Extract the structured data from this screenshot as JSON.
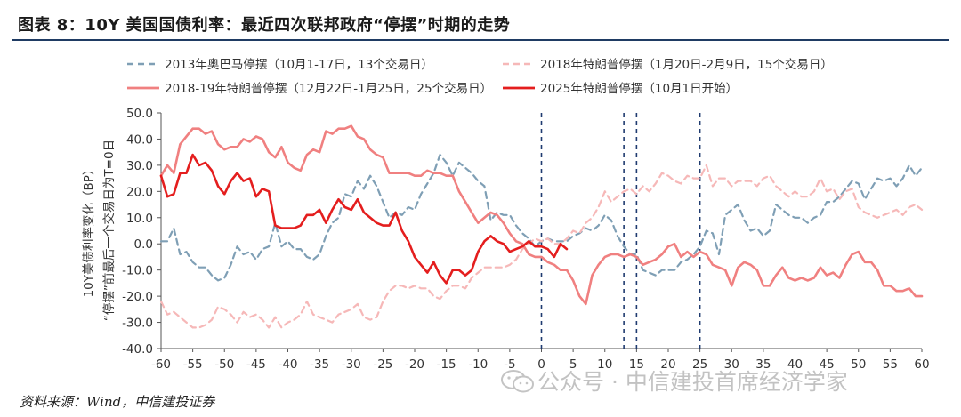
{
  "header": {
    "title": "图表 8：10Y 美国国债利率：最近四次联邦政府“停摆”时期的走势"
  },
  "footer": {
    "source": "资料来源：Wind，中信建投证券"
  },
  "watermark": {
    "text": "公众号 · 中信建投首席经济学家",
    "icon": "wechat-icon"
  },
  "chart_data": {
    "type": "line",
    "title": "10Y 美国国债利率：最近四次联邦政府“停摆”时期的走势",
    "ylabel": "10Y美债利率变化（BP）“停摆”前最后一个交易日为T=0日",
    "xlabel": "",
    "xlim": [
      -60,
      60
    ],
    "ylim": [
      -40,
      50
    ],
    "xticks": [
      -60,
      -55,
      -50,
      -45,
      -40,
      -35,
      -30,
      -25,
      -20,
      -15,
      -10,
      -5,
      0,
      5,
      10,
      15,
      20,
      25,
      30,
      35,
      40,
      45,
      50,
      55,
      60
    ],
    "yticks": [
      "-40.0",
      "-30.0",
      "-20.0",
      "-10.0",
      "0.0",
      "10.0",
      "20.0",
      "30.0",
      "40.0",
      "50.0"
    ],
    "vlines": [
      0,
      13,
      15,
      25
    ],
    "vline_color": "#1f3b70",
    "legend": [
      {
        "label": "2013年奥巴马停摆（10月1-17日，13个交易日）",
        "color": "#7f9fb5",
        "style": "dashed"
      },
      {
        "label": "2018年特朗普停摆（1月20日-2月9日，15个交易日）",
        "color": "#f6b8b8",
        "style": "dashed"
      },
      {
        "label": "2018-19年特朗普停摆（12月22日-1月25日，25个交易日）",
        "color": "#f08080",
        "style": "solid"
      },
      {
        "label": "2025年特朗普停摆（10月1日开始）",
        "color": "#e41e1e",
        "style": "solid"
      }
    ],
    "series": [
      {
        "name": "2013年奥巴马停摆（10月1-17日，13个交易日）",
        "color": "#7f9fb5",
        "dash": "7,5",
        "width": 2.2,
        "x": [
          -60,
          -59,
          -58,
          -57,
          -56,
          -55,
          -54,
          -53,
          -52,
          -51,
          -50,
          -49,
          -48,
          -47,
          -46,
          -45,
          -44,
          -43,
          -42,
          -41,
          -40,
          -39,
          -38,
          -37,
          -36,
          -35,
          -34,
          -33,
          -32,
          -31,
          -30,
          -29,
          -28,
          -27,
          -26,
          -25,
          -24,
          -23,
          -22,
          -21,
          -20,
          -19,
          -18,
          -17,
          -16,
          -15,
          -14,
          -13,
          -12,
          -11,
          -10,
          -9,
          -8,
          -7,
          -6,
          -5,
          -4,
          -3,
          -2,
          -1,
          0,
          1,
          2,
          3,
          4,
          5,
          6,
          7,
          8,
          9,
          10,
          11,
          12,
          13,
          14,
          15,
          16,
          17,
          18,
          19,
          20,
          21,
          22,
          23,
          24,
          25,
          26,
          27,
          28,
          29,
          30,
          31,
          32,
          33,
          34,
          35,
          36,
          37,
          38,
          39,
          40,
          41,
          42,
          43,
          44,
          45,
          46,
          47,
          48,
          49,
          50,
          51,
          52,
          53,
          54,
          55,
          56,
          57,
          58,
          59,
          60
        ],
        "y": [
          1,
          1,
          6,
          -4,
          -3,
          -7,
          -9,
          -9,
          -12,
          -14,
          -13,
          -8,
          -1,
          -4,
          -3,
          -6,
          -2,
          -1,
          8,
          -1,
          1,
          -2,
          -2,
          -5,
          -6,
          -4,
          3,
          8,
          10,
          19,
          18,
          24,
          21,
          26,
          22,
          16,
          10,
          12,
          11,
          14,
          13,
          19,
          23,
          27,
          34,
          31,
          26,
          31,
          29,
          27,
          24,
          22,
          9,
          12,
          11,
          11,
          7,
          4,
          2,
          -1,
          1,
          2,
          1,
          1,
          1,
          3,
          4,
          6,
          5,
          7,
          11,
          9,
          3,
          -1,
          -4,
          -4,
          -10,
          -11,
          -12,
          -10,
          -10,
          -10,
          -7,
          -6,
          -4,
          -1,
          5,
          4,
          -4,
          11,
          13,
          15,
          9,
          5,
          6,
          3,
          5,
          15,
          13,
          11,
          10,
          10,
          8,
          10,
          11,
          16,
          16,
          18,
          21,
          24,
          23,
          17,
          21,
          25,
          24,
          25,
          22,
          25,
          30,
          26,
          29
        ]
      },
      {
        "name": "2018年特朗普停摆（1月20日-2月9日，15个交易日）",
        "color": "#f6b8b8",
        "dash": "7,5",
        "width": 2.2,
        "x": [
          -60,
          -59,
          -58,
          -57,
          -56,
          -55,
          -54,
          -53,
          -52,
          -51,
          -50,
          -49,
          -48,
          -47,
          -46,
          -45,
          -44,
          -43,
          -42,
          -41,
          -40,
          -39,
          -38,
          -37,
          -36,
          -35,
          -34,
          -33,
          -32,
          -31,
          -30,
          -29,
          -28,
          -27,
          -26,
          -25,
          -24,
          -23,
          -22,
          -21,
          -20,
          -19,
          -18,
          -17,
          -16,
          -15,
          -14,
          -13,
          -12,
          -11,
          -10,
          -9,
          -8,
          -7,
          -6,
          -5,
          -4,
          -3,
          -2,
          -1,
          0,
          1,
          2,
          3,
          4,
          5,
          6,
          7,
          8,
          9,
          10,
          11,
          12,
          13,
          14,
          15,
          16,
          17,
          18,
          19,
          20,
          21,
          22,
          23,
          24,
          25,
          26,
          27,
          28,
          29,
          30,
          31,
          32,
          33,
          34,
          35,
          36,
          37,
          38,
          39,
          40,
          41,
          42,
          43,
          44,
          45,
          46,
          47,
          48,
          49,
          50,
          51,
          52,
          53,
          54,
          55,
          56,
          57,
          58,
          59,
          60
        ],
        "y": [
          -22,
          -27,
          -26,
          -28,
          -30,
          -32,
          -32,
          -31,
          -29,
          -24,
          -25,
          -27,
          -30,
          -26,
          -28,
          -27,
          -29,
          -32,
          -28,
          -32,
          -30,
          -29,
          -27,
          -22,
          -27,
          -28,
          -29,
          -30,
          -27,
          -26,
          -25,
          -23,
          -28,
          -29,
          -28,
          -22,
          -18,
          -16,
          -16,
          -17,
          -16,
          -17,
          -17,
          -20,
          -21,
          -18,
          -16,
          -16,
          -17,
          -13,
          -11,
          -9,
          -9,
          -9,
          -9,
          -8,
          -6,
          -2,
          0,
          2,
          1,
          2,
          0,
          0,
          2,
          5,
          4,
          8,
          10,
          14,
          20,
          16,
          18,
          20,
          21,
          19,
          22,
          20,
          23,
          27,
          26,
          24,
          23,
          26,
          25,
          25,
          30,
          22,
          25,
          25,
          22,
          24,
          24,
          24,
          22,
          25,
          26,
          22,
          20,
          18,
          20,
          18,
          18,
          20,
          25,
          20,
          21,
          17,
          20,
          21,
          14,
          12,
          11,
          10,
          11,
          12,
          13,
          11,
          14,
          15,
          13
        ]
      },
      {
        "name": "2018-19年特朗普停摆（12月22日-1月25日，25个交易日）",
        "color": "#f08080",
        "dash": "",
        "width": 2.6,
        "x": [
          -60,
          -59,
          -58,
          -57,
          -56,
          -55,
          -54,
          -53,
          -52,
          -51,
          -50,
          -49,
          -48,
          -47,
          -46,
          -45,
          -44,
          -43,
          -42,
          -41,
          -40,
          -39,
          -38,
          -37,
          -36,
          -35,
          -34,
          -33,
          -32,
          -31,
          -30,
          -29,
          -28,
          -27,
          -26,
          -25,
          -24,
          -23,
          -22,
          -21,
          -20,
          -19,
          -18,
          -17,
          -16,
          -15,
          -14,
          -13,
          -12,
          -11,
          -10,
          -9,
          -8,
          -7,
          -6,
          -5,
          -4,
          -3,
          -2,
          -1,
          0,
          1,
          2,
          3,
          4,
          5,
          6,
          7,
          8,
          9,
          10,
          11,
          12,
          13,
          14,
          15,
          16,
          17,
          18,
          19,
          20,
          21,
          22,
          23,
          24,
          25,
          26,
          27,
          28,
          29,
          30,
          31,
          32,
          33,
          34,
          35,
          36,
          37,
          38,
          39,
          40,
          41,
          42,
          43,
          44,
          45,
          46,
          47,
          48,
          49,
          50,
          51,
          52,
          53,
          54,
          55,
          56,
          57,
          58,
          59,
          60
        ],
        "y": [
          26,
          30,
          27,
          38,
          41,
          44,
          44,
          42,
          43,
          38,
          36,
          37,
          37,
          40,
          39,
          41,
          40,
          35,
          33,
          37,
          31,
          29,
          28,
          34,
          36,
          35,
          43,
          42,
          44,
          44,
          45,
          41,
          40,
          36,
          34,
          33,
          27,
          27,
          27,
          27,
          26,
          26,
          28,
          27,
          27,
          26,
          26,
          20,
          16,
          12,
          8,
          10,
          12,
          11,
          8,
          4,
          1,
          0,
          -4,
          -5,
          -5,
          -7,
          -8,
          -10,
          -10,
          -14,
          -20,
          -23,
          -12,
          -8,
          -5,
          -4,
          -4,
          -5,
          -4,
          -5,
          -8,
          -7,
          -6,
          -4,
          -1,
          0,
          -5,
          -3,
          -5,
          -3,
          -4,
          -8,
          -9,
          -10,
          -16,
          -9,
          -7,
          -8,
          -10,
          -16,
          -16,
          -12,
          -9,
          -13,
          -14,
          -13,
          -14,
          -13,
          -9,
          -12,
          -11,
          -13,
          -8,
          -4,
          -3,
          -7,
          -7,
          -10,
          -16,
          -16,
          -18,
          -18,
          -17,
          -20,
          -20
        ]
      },
      {
        "name": "2025年特朗普停摆（10月1日开始）",
        "color": "#e41e1e",
        "dash": "",
        "width": 2.6,
        "x": [
          -60,
          -59,
          -58,
          -57,
          -56,
          -55,
          -54,
          -53,
          -52,
          -51,
          -50,
          -49,
          -48,
          -47,
          -46,
          -45,
          -44,
          -43,
          -42,
          -41,
          -40,
          -39,
          -38,
          -37,
          -36,
          -35,
          -34,
          -33,
          -32,
          -31,
          -30,
          -29,
          -28,
          -27,
          -26,
          -25,
          -24,
          -23,
          -22,
          -21,
          -20,
          -19,
          -18,
          -17,
          -16,
          -15,
          -14,
          -13,
          -12,
          -11,
          -10,
          -9,
          -8,
          -7,
          -6,
          -5,
          -4,
          -3,
          -2,
          -1,
          0,
          1,
          2,
          3,
          4
        ],
        "y": [
          26,
          18,
          19,
          27,
          27,
          34,
          30,
          31,
          28,
          22,
          19,
          24,
          27,
          24,
          25,
          18,
          21,
          20,
          7,
          6,
          6,
          6,
          7,
          11,
          11,
          13,
          8,
          13,
          17,
          14,
          13,
          17,
          12,
          10,
          8,
          7,
          7,
          12,
          5,
          1,
          -5,
          -8,
          -11,
          -7,
          -12,
          -15,
          -10,
          -10,
          -12,
          -10,
          -3,
          1,
          3,
          1,
          0,
          -3,
          -2,
          -1,
          1,
          -1,
          -1,
          -2,
          -5,
          0,
          -2
        ]
      }
    ]
  }
}
